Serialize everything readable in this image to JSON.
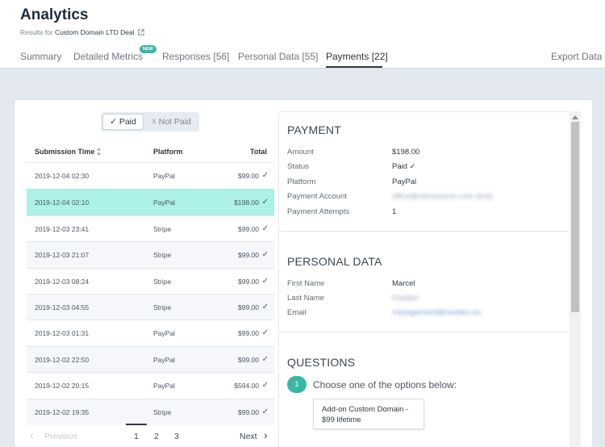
{
  "header": {
    "title": "Analytics",
    "subtitle_prefix": "Results for",
    "subtitle_deal": "Custom Domain LTD Deal",
    "tabs": [
      {
        "label": "Summary"
      },
      {
        "label": "Detailed Metrics",
        "badge": "NEW"
      },
      {
        "label": "Responses [56]"
      },
      {
        "label": "Personal Data [55]"
      },
      {
        "label": "Payments [22]",
        "active": true
      }
    ],
    "export_label": "Export Data"
  },
  "filter": {
    "paid_label": "✓ Paid",
    "not_paid_label": "☓ Not Paid",
    "selected": "paid"
  },
  "table": {
    "columns": {
      "time": "Submission Time",
      "platform": "Platform",
      "total": "Total"
    },
    "check": "✓",
    "rows": [
      {
        "time": "2019-12-04 02:30",
        "platform": "PayPal",
        "total": "$99.00"
      },
      {
        "time": "2019-12-04 02:10",
        "platform": "PayPal",
        "total": "$198.00"
      },
      {
        "time": "2019-12-03 23:41",
        "platform": "Stripe",
        "total": "$99.00"
      },
      {
        "time": "2019-12-03 21:07",
        "platform": "Stripe",
        "total": "$99.00"
      },
      {
        "time": "2019-12-03 08:24",
        "platform": "Stripe",
        "total": "$99.00"
      },
      {
        "time": "2019-12-03 04:55",
        "platform": "Stripe",
        "total": "$99.00"
      },
      {
        "time": "2019-12-03 01:31",
        "platform": "PayPal",
        "total": "$99.00"
      },
      {
        "time": "2019-12-02 22:50",
        "platform": "PayPal",
        "total": "$99.00"
      },
      {
        "time": "2019-12-02 20:15",
        "platform": "PayPal",
        "total": "$594.00"
      },
      {
        "time": "2019-12-02 19:35",
        "platform": "Stripe",
        "total": "$99.00"
      }
    ],
    "selected_index": 1
  },
  "pagination": {
    "prev": "Previous",
    "next": "Next",
    "pages": [
      "1",
      "2",
      "3"
    ],
    "current": "1"
  },
  "payment": {
    "title": "PAYMENT",
    "amount_label": "Amount",
    "amount": "$198.00",
    "status_label": "Status",
    "status": "Paid ✓",
    "platform_label": "Platform",
    "platform": "PayPal",
    "account_label": "Payment Account",
    "account": "office@stereosonic.com (live)",
    "attempts_label": "Payment Attempts",
    "attempts": "1"
  },
  "personal": {
    "title": "PERSONAL DATA",
    "first_label": "First Name",
    "first": "Marcel",
    "last_label": "Last Name",
    "last": "Huetten",
    "email_label": "Email",
    "email": "management@huetten.eu"
  },
  "questions": {
    "title": "QUESTIONS",
    "number": "1",
    "question": "Choose one of the options below:",
    "answer_line1": "Add-on Custom Domain -",
    "answer_line2": "$99 lifetime"
  },
  "colors": {
    "accent": "#3ab7a6",
    "selected_row": "#adf0e7",
    "background": "#e4e9f0"
  }
}
